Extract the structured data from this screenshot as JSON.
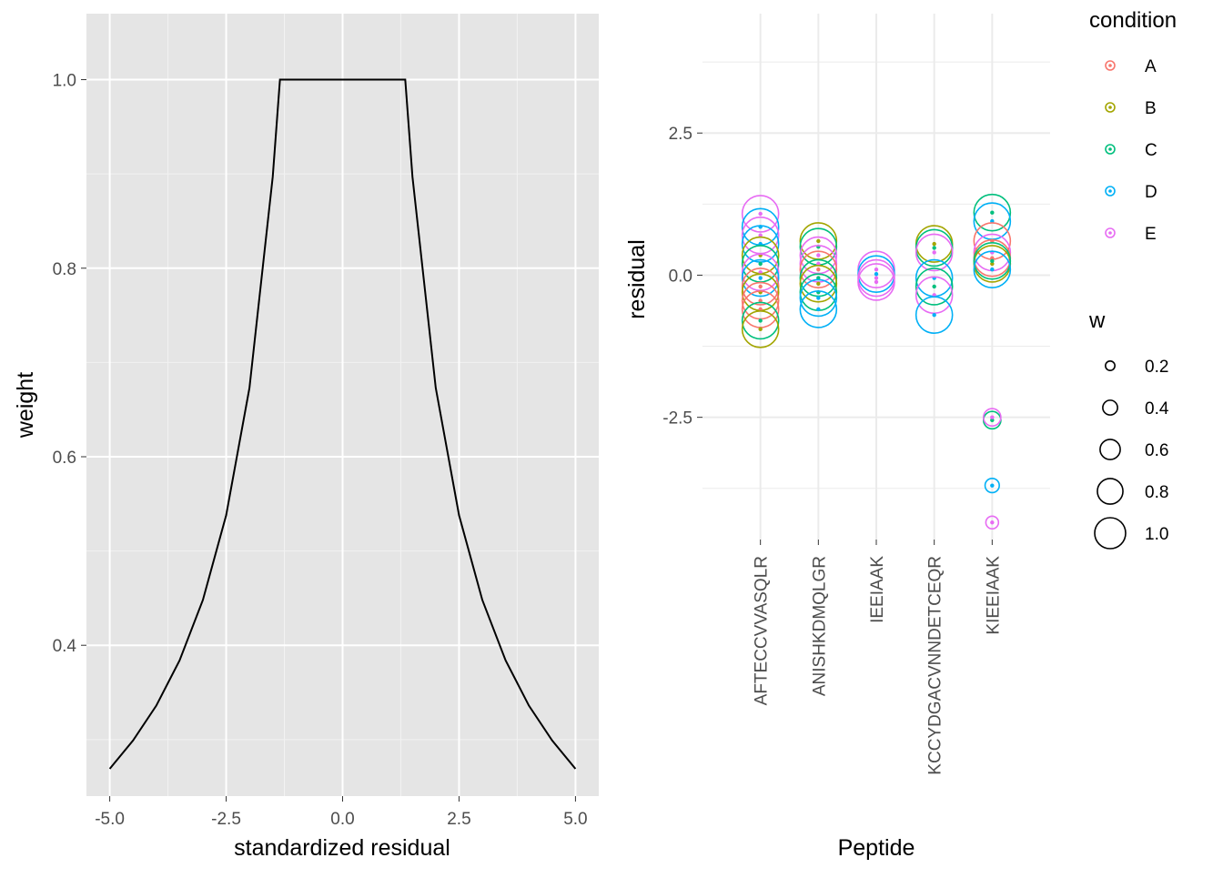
{
  "chart_data": [
    {
      "type": "line",
      "xlabel": "standardized residual",
      "ylabel": "weight",
      "xlim": [
        -5.5,
        5.5
      ],
      "ylim": [
        0.24,
        1.07
      ],
      "xticks": [
        -5.0,
        -2.5,
        0.0,
        2.5,
        5.0
      ],
      "xtick_labels": [
        "-5.0",
        "-2.5",
        "0.0",
        "2.5",
        "5.0"
      ],
      "yticks": [
        0.4,
        0.6,
        0.8,
        1.0
      ],
      "ytick_labels": [
        "0.4",
        "0.6",
        "0.8",
        "1.0"
      ],
      "background": "#e5e5e5",
      "grid": true,
      "line_color": "#000000",
      "series": [
        {
          "x": [
            -5.0,
            -4.5,
            -4.0,
            -3.5,
            -3.0,
            -2.5,
            -2.0,
            -1.5,
            -1.345,
            0.0,
            1.345,
            1.5,
            2.0,
            2.5,
            3.0,
            3.5,
            4.0,
            4.5,
            5.0
          ],
          "y": [
            0.269,
            0.299,
            0.336,
            0.384,
            0.448,
            0.538,
            0.673,
            0.897,
            1.0,
            1.0,
            1.0,
            0.897,
            0.673,
            0.538,
            0.448,
            0.384,
            0.336,
            0.299,
            0.269
          ]
        }
      ]
    },
    {
      "type": "scatter",
      "xlabel": "Peptide",
      "ylabel": "residual",
      "categories": [
        "AFTECCVVASQLR",
        "ANISHKDMQLGR",
        "IEEIAAK",
        "KCCYDGACVNNDETCEQR",
        "KIEEIAAK"
      ],
      "ylim": [
        -4.65,
        4.6
      ],
      "yticks": [
        -2.5,
        0.0,
        2.5
      ],
      "ytick_labels": [
        "-2.5",
        "0.0",
        "2.5"
      ],
      "grid": true,
      "background": "#ffffff",
      "legend_placement": "right",
      "color_legend": {
        "title": "condition",
        "entries": [
          {
            "label": "A",
            "color": "#F8766D"
          },
          {
            "label": "B",
            "color": "#A3A500"
          },
          {
            "label": "C",
            "color": "#00BF7D"
          },
          {
            "label": "D",
            "color": "#00B0F6"
          },
          {
            "label": "E",
            "color": "#E76BF3"
          }
        ]
      },
      "size_legend": {
        "title": "w",
        "entries": [
          {
            "label": "0.2",
            "value": 0.2
          },
          {
            "label": "0.4",
            "value": 0.4
          },
          {
            "label": "0.6",
            "value": 0.6
          },
          {
            "label": "0.8",
            "value": 0.8
          },
          {
            "label": "1.0",
            "value": 1.0
          }
        ]
      },
      "points": [
        {
          "peptide": "AFTECCVVASQLR",
          "condition": "E",
          "residual": 1.08,
          "w": 1.0
        },
        {
          "peptide": "AFTECCVVASQLR",
          "condition": "D",
          "residual": 0.85,
          "w": 1.0
        },
        {
          "peptide": "AFTECCVVASQLR",
          "condition": "E",
          "residual": 0.7,
          "w": 1.0
        },
        {
          "peptide": "AFTECCVVASQLR",
          "condition": "D",
          "residual": 0.55,
          "w": 1.0
        },
        {
          "peptide": "AFTECCVVASQLR",
          "condition": "B",
          "residual": 0.35,
          "w": 1.0
        },
        {
          "peptide": "AFTECCVVASQLR",
          "condition": "C",
          "residual": 0.2,
          "w": 1.0
        },
        {
          "peptide": "AFTECCVVASQLR",
          "condition": "E",
          "residual": 0.05,
          "w": 1.0
        },
        {
          "peptide": "AFTECCVVASQLR",
          "condition": "D",
          "residual": -0.05,
          "w": 1.0
        },
        {
          "peptide": "AFTECCVVASQLR",
          "condition": "A",
          "residual": -0.2,
          "w": 1.0
        },
        {
          "peptide": "AFTECCVVASQLR",
          "condition": "B",
          "residual": -0.3,
          "w": 1.0
        },
        {
          "peptide": "AFTECCVVASQLR",
          "condition": "A",
          "residual": -0.45,
          "w": 1.0
        },
        {
          "peptide": "AFTECCVVASQLR",
          "condition": "A",
          "residual": -0.6,
          "w": 1.0
        },
        {
          "peptide": "AFTECCVVASQLR",
          "condition": "C",
          "residual": -0.8,
          "w": 1.0
        },
        {
          "peptide": "AFTECCVVASQLR",
          "condition": "B",
          "residual": -0.95,
          "w": 1.0
        },
        {
          "peptide": "ANISHKDMQLGR",
          "condition": "B",
          "residual": 0.6,
          "w": 1.0
        },
        {
          "peptide": "ANISHKDMQLGR",
          "condition": "C",
          "residual": 0.5,
          "w": 1.0
        },
        {
          "peptide": "ANISHKDMQLGR",
          "condition": "E",
          "residual": 0.35,
          "w": 1.0
        },
        {
          "peptide": "ANISHKDMQLGR",
          "condition": "E",
          "residual": 0.2,
          "w": 1.0
        },
        {
          "peptide": "ANISHKDMQLGR",
          "condition": "A",
          "residual": 0.1,
          "w": 1.0
        },
        {
          "peptide": "ANISHKDMQLGR",
          "condition": "C",
          "residual": -0.05,
          "w": 1.0
        },
        {
          "peptide": "ANISHKDMQLGR",
          "condition": "B",
          "residual": -0.15,
          "w": 1.0
        },
        {
          "peptide": "ANISHKDMQLGR",
          "condition": "C",
          "residual": -0.3,
          "w": 1.0
        },
        {
          "peptide": "ANISHKDMQLGR",
          "condition": "D",
          "residual": -0.4,
          "w": 1.0
        },
        {
          "peptide": "ANISHKDMQLGR",
          "condition": "D",
          "residual": -0.6,
          "w": 1.0
        },
        {
          "peptide": "IEEIAAK",
          "condition": "E",
          "residual": 0.1,
          "w": 1.0
        },
        {
          "peptide": "IEEIAAK",
          "condition": "D",
          "residual": 0.02,
          "w": 1.0
        },
        {
          "peptide": "IEEIAAK",
          "condition": "E",
          "residual": -0.05,
          "w": 1.0
        },
        {
          "peptide": "IEEIAAK",
          "condition": "E",
          "residual": -0.12,
          "w": 1.0
        },
        {
          "peptide": "KCCYDGACVNNDETCEQR",
          "condition": "B",
          "residual": 0.55,
          "w": 1.0
        },
        {
          "peptide": "KCCYDGACVNNDETCEQR",
          "condition": "C",
          "residual": 0.48,
          "w": 1.0
        },
        {
          "peptide": "KCCYDGACVNNDETCEQR",
          "condition": "E",
          "residual": 0.4,
          "w": 1.0
        },
        {
          "peptide": "KCCYDGACVNNDETCEQR",
          "condition": "D",
          "residual": -0.05,
          "w": 1.0
        },
        {
          "peptide": "KCCYDGACVNNDETCEQR",
          "condition": "C",
          "residual": -0.2,
          "w": 1.0
        },
        {
          "peptide": "KCCYDGACVNNDETCEQR",
          "condition": "E",
          "residual": -0.35,
          "w": 1.0
        },
        {
          "peptide": "KCCYDGACVNNDETCEQR",
          "condition": "D",
          "residual": -0.7,
          "w": 1.0
        },
        {
          "peptide": "KIEEIAAK",
          "condition": "C",
          "residual": 1.1,
          "w": 1.0
        },
        {
          "peptide": "KIEEIAAK",
          "condition": "D",
          "residual": 0.95,
          "w": 1.0
        },
        {
          "peptide": "KIEEIAAK",
          "condition": "A",
          "residual": 0.6,
          "w": 1.0
        },
        {
          "peptide": "KIEEIAAK",
          "condition": "E",
          "residual": 0.4,
          "w": 1.0
        },
        {
          "peptide": "KIEEIAAK",
          "condition": "A",
          "residual": 0.3,
          "w": 1.0
        },
        {
          "peptide": "KIEEIAAK",
          "condition": "B",
          "residual": 0.2,
          "w": 1.0
        },
        {
          "peptide": "KIEEIAAK",
          "condition": "C",
          "residual": 0.25,
          "w": 1.0
        },
        {
          "peptide": "KIEEIAAK",
          "condition": "D",
          "residual": 0.1,
          "w": 1.0
        },
        {
          "peptide": "KIEEIAAK",
          "condition": "C",
          "residual": -2.55,
          "w": 0.4
        },
        {
          "peptide": "KIEEIAAK",
          "condition": "E",
          "residual": -2.5,
          "w": 0.4
        },
        {
          "peptide": "KIEEIAAK",
          "condition": "D",
          "residual": -3.7,
          "w": 0.3
        },
        {
          "peptide": "KIEEIAAK",
          "condition": "E",
          "residual": -4.35,
          "w": 0.25
        }
      ]
    }
  ]
}
